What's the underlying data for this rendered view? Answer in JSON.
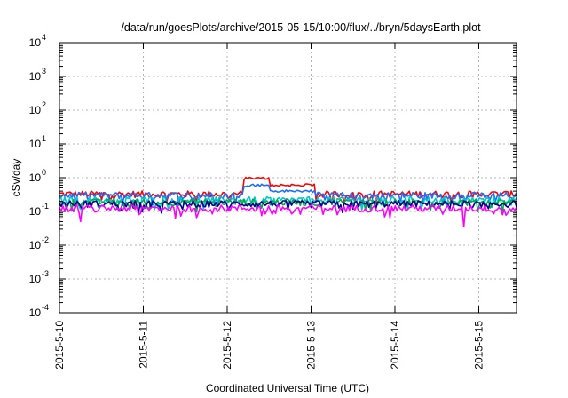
{
  "chart_data": {
    "type": "line",
    "title": "/data/run/goesPlots/archive/2015-05-15/10:00/flux/../bryn/5daysEarth.plot",
    "xlabel": "Coordinated Universal Time (UTC)",
    "ylabel": "cSv/day",
    "yscale": "log",
    "ylim": [
      0.0001,
      10000
    ],
    "xlim_days": [
      0,
      5.45
    ],
    "ytick_exponents": [
      "-4",
      "-3",
      "-2",
      "-1",
      "0",
      "1",
      "2",
      "3",
      "4"
    ],
    "ytick_base": "10",
    "xticks": [
      {
        "label": "2015-5-10",
        "day": 0
      },
      {
        "label": "2015-5-11",
        "day": 1
      },
      {
        "label": "2015-5-12",
        "day": 2
      },
      {
        "label": "2015-5-13",
        "day": 3
      },
      {
        "label": "2015-5-14",
        "day": 4
      },
      {
        "label": "2015-5-15",
        "day": 5
      }
    ],
    "grid": true,
    "series": [
      {
        "color": "#ff0000",
        "baseline": 0.33,
        "event": {
          "start": 2.2,
          "end": 3.05,
          "peak": 0.95,
          "plateau": 0.6
        }
      },
      {
        "color": "#1e6fff",
        "baseline": 0.3,
        "event": {
          "start": 2.2,
          "end": 3.05,
          "peak": 0.6,
          "plateau": 0.4
        }
      },
      {
        "color": "#00c8c8",
        "baseline": 0.22
      },
      {
        "color": "#00aa44",
        "baseline": 0.19
      },
      {
        "color": "#000090",
        "baseline": 0.17
      },
      {
        "color": "#ff00ff",
        "baseline": 0.125,
        "dips": [
          {
            "day": 0.25,
            "value": 0.05
          },
          {
            "day": 0.95,
            "value": 0.08
          },
          {
            "day": 4.82,
            "value": 0.035
          },
          {
            "day": 5.35,
            "value": 0.09
          }
        ]
      }
    ]
  }
}
